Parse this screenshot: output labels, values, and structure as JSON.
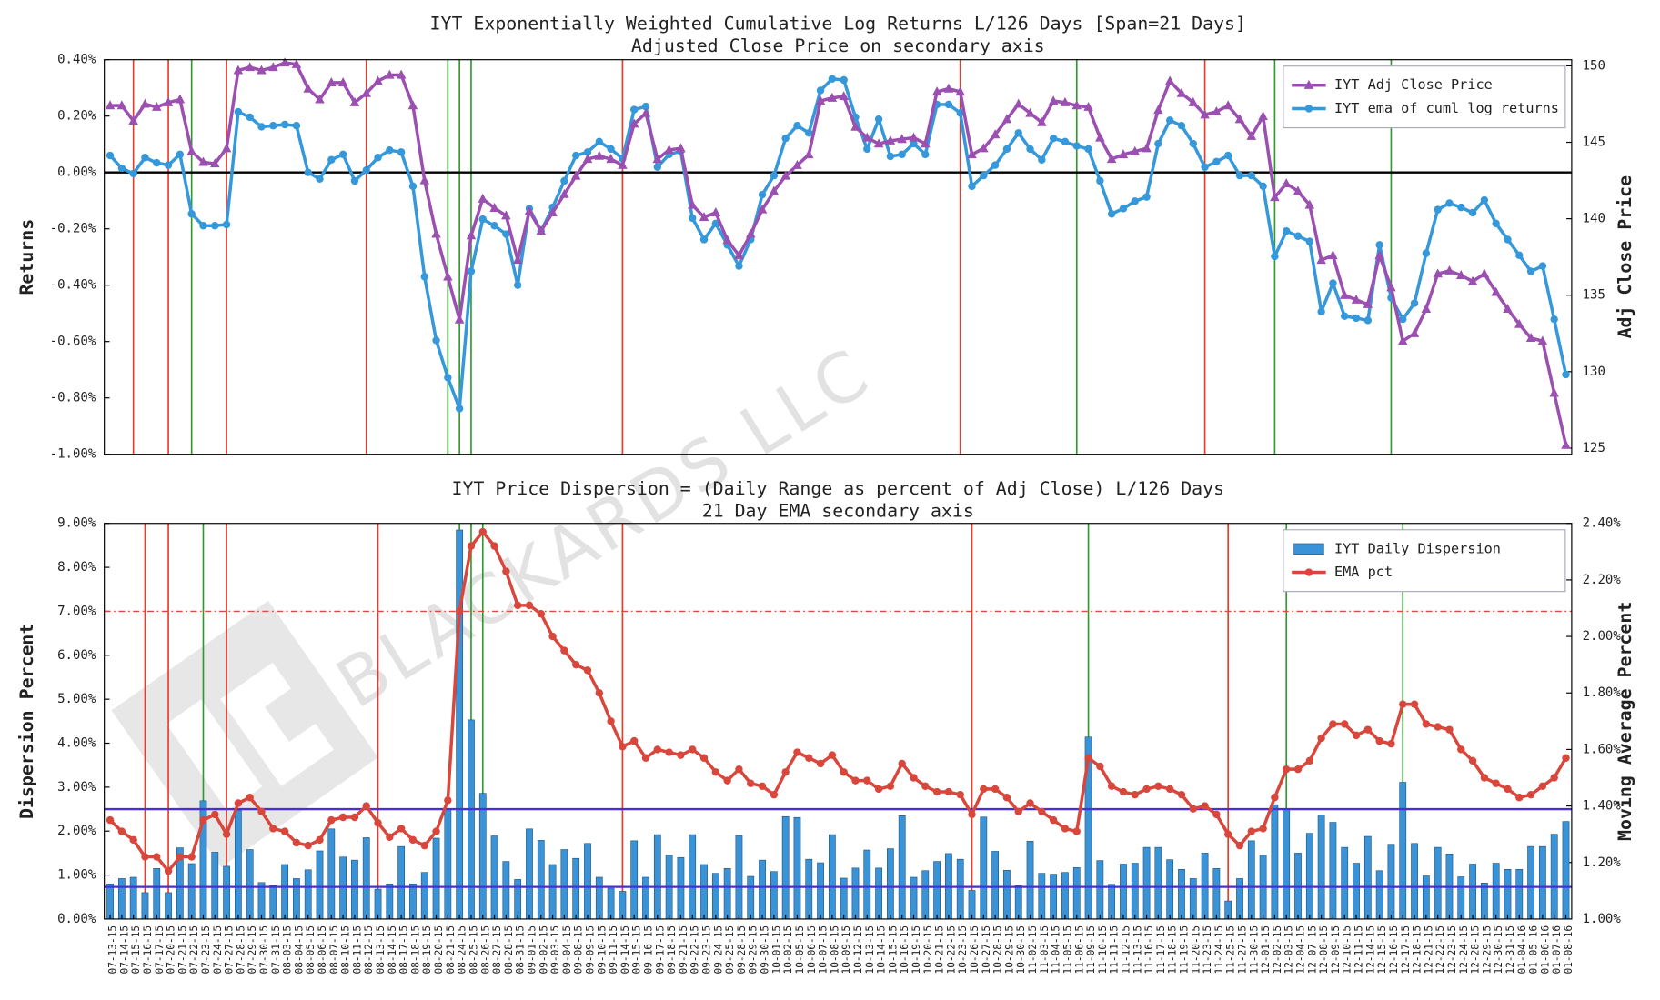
{
  "watermark": "BLACKARDS LLC",
  "chart_data": [
    {
      "type": "line",
      "title": "IYT Exponentially Weighted Cumulative Log Returns L/126 Days [Span=21 Days]",
      "subtitle": "Adjusted Close Price on secondary axis",
      "ylabel": "Returns",
      "y2label": "Adj Close Price",
      "ylim": [
        -1.0,
        0.4
      ],
      "yticks": [
        {
          "value": 0.4,
          "label": "0.40%"
        },
        {
          "value": 0.2,
          "label": "0.20%"
        },
        {
          "value": 0,
          "label": "0.00%"
        },
        {
          "value": -0.2,
          "label": "-0.20%"
        },
        {
          "value": -0.4,
          "label": "-0.40%"
        },
        {
          "value": -0.6,
          "label": "-0.60%"
        },
        {
          "value": -0.8,
          "label": "-0.80%"
        },
        {
          "value": -1.0,
          "label": "-1.00%"
        }
      ],
      "y2lim": [
        124.6,
        150.4
      ],
      "y2ticks": [
        125,
        130,
        135,
        140,
        145,
        150
      ],
      "legend": "upper right",
      "hlines": [
        {
          "value": 0,
          "color": "#000000",
          "style": "solid"
        }
      ],
      "signals": [
        {
          "color": "#e8392b",
          "dates": [
            "07-15-15",
            "07-20-15",
            "07-27-15",
            "08-12-15",
            "09-14-15",
            "10-23-15",
            "11-23-15"
          ]
        },
        {
          "color": "#2e9a2e",
          "dates": [
            "07-22-15",
            "08-21-15",
            "08-24-15",
            "08-25-15",
            "11-06-15",
            "12-02-15",
            "12-16-15"
          ]
        }
      ],
      "series": [
        {
          "name": "IYT Adj Close Price",
          "color": "#9b4fb0",
          "marker": "triangle",
          "axis": "y2",
          "type": "line",
          "values": [
            147.4,
            147.4,
            146.4,
            147.5,
            147.3,
            147.6,
            147.8,
            144.4,
            143.7,
            143.6,
            144.6,
            149.7,
            149.9,
            149.7,
            149.9,
            150.2,
            150.1,
            148.5,
            147.8,
            148.9,
            148.9,
            147.6,
            148.2,
            149.0,
            149.4,
            149.4,
            147.4,
            142.5,
            139.0,
            136.2,
            133.4,
            138.9,
            141.3,
            140.7,
            140.2,
            137.3,
            140.5,
            139.2,
            140.4,
            141.6,
            142.8,
            143.9,
            144.1,
            143.9,
            143.5,
            146.2,
            146.9,
            143.9,
            144.5,
            144.6,
            140.9,
            140.1,
            140.4,
            138.6,
            137.6,
            139.0,
            140.6,
            141.8,
            142.8,
            143.5,
            144.2,
            147.7,
            147.9,
            148.0,
            146.0,
            145.3,
            144.9,
            145.1,
            145.2,
            145.3,
            144.9,
            148.3,
            148.5,
            148.3,
            144.2,
            144.6,
            145.5,
            146.5,
            147.5,
            146.9,
            146.3,
            147.7,
            147.6,
            147.4,
            147.3,
            145.3,
            143.9,
            144.2,
            144.4,
            144.6,
            147.1,
            149.0,
            148.2,
            147.6,
            146.8,
            147.0,
            147.4,
            146.5,
            145.4,
            146.7,
            141.4,
            142.3,
            141.8,
            140.9,
            137.3,
            137.6,
            135.0,
            134.7,
            134.4,
            137.6,
            135.5,
            132.0,
            132.5,
            134.1,
            136.4,
            136.6,
            136.3,
            135.9,
            136.4,
            135.2,
            134.1,
            133.1,
            132.2,
            132.0,
            128.6,
            125.2
          ]
        },
        {
          "name": "IYT ema of cuml log returns",
          "color": "#3498db",
          "marker": "circle",
          "type": "line",
          "values": [
            0.06,
            0.015,
            -0.004,
            0.053,
            0.034,
            0.026,
            0.064,
            -0.147,
            -0.189,
            -0.189,
            -0.185,
            0.215,
            0.196,
            0.162,
            0.166,
            0.17,
            0.166,
            0,
            -0.023,
            0.045,
            0.064,
            -0.03,
            0.008,
            0.053,
            0.079,
            0.072,
            -0.049,
            -0.37,
            -0.596,
            -0.728,
            -0.838,
            -0.351,
            -0.166,
            -0.189,
            -0.219,
            -0.4,
            -0.128,
            -0.208,
            -0.124,
            -0.03,
            0.06,
            0.072,
            0.109,
            0.083,
            0.049,
            0.223,
            0.234,
            0.019,
            0.064,
            0.075,
            -0.162,
            -0.238,
            -0.181,
            -0.257,
            -0.332,
            -0.238,
            -0.079,
            -0.011,
            0.121,
            0.166,
            0.14,
            0.291,
            0.332,
            0.328,
            0.196,
            0.083,
            0.189,
            0.057,
            0.064,
            0.102,
            0.064,
            0.241,
            0.241,
            0.211,
            -0.049,
            -0.011,
            0.026,
            0.083,
            0.14,
            0.083,
            0.045,
            0.121,
            0.109,
            0.094,
            0.083,
            -0.03,
            -0.147,
            -0.128,
            -0.102,
            -0.087,
            0.102,
            0.185,
            0.166,
            0.102,
            0.019,
            0.038,
            0.06,
            -0.011,
            -0.011,
            -0.049,
            -0.298,
            -0.208,
            -0.226,
            -0.245,
            -0.494,
            -0.393,
            -0.51,
            -0.517,
            -0.525,
            -0.257,
            -0.445,
            -0.521,
            -0.464,
            -0.287,
            -0.132,
            -0.109,
            -0.124,
            -0.143,
            -0.098,
            -0.181,
            -0.238,
            -0.294,
            -0.351,
            -0.332,
            -0.521,
            -0.717
          ]
        }
      ]
    },
    {
      "type": "bar",
      "title": "IYT Price Dispersion = (Daily Range as percent of Adj Close) L/126 Days",
      "subtitle": "21 Day EMA secondary axis",
      "ylabel": "Dispersion Percent",
      "y2label": "Moving Average Percent",
      "ylim": [
        0,
        9
      ],
      "yticks": [
        {
          "value": 0,
          "label": "0.00%"
        },
        {
          "value": 1,
          "label": "1.00%"
        },
        {
          "value": 2,
          "label": "2.00%"
        },
        {
          "value": 3,
          "label": "3.00%"
        },
        {
          "value": 4,
          "label": "4.00%"
        },
        {
          "value": 5,
          "label": "5.00%"
        },
        {
          "value": 6,
          "label": "6.00%"
        },
        {
          "value": 7,
          "label": "7.00%"
        },
        {
          "value": 8,
          "label": "8.00%"
        },
        {
          "value": 9,
          "label": "9.00%"
        }
      ],
      "y2lim": [
        1.0,
        2.4
      ],
      "y2ticks": [
        {
          "value": 1.0,
          "label": "1.00%"
        },
        {
          "value": 1.2,
          "label": "1.20%"
        },
        {
          "value": 1.4,
          "label": "1.40%"
        },
        {
          "value": 1.6,
          "label": "1.60%"
        },
        {
          "value": 1.8,
          "label": "1.80%"
        },
        {
          "value": 2.0,
          "label": "2.00%"
        },
        {
          "value": 2.2,
          "label": "2.20%"
        },
        {
          "value": 2.4,
          "label": "2.40%"
        }
      ],
      "legend": "upper right",
      "hlines": [
        {
          "value": 2.5,
          "color": "#4a2fd6",
          "style": "solid"
        },
        {
          "value": 0.73,
          "color": "#4a2fd6",
          "style": "solid"
        },
        {
          "value": 7.0,
          "color": "#e04a3a",
          "style": "dashdot"
        }
      ],
      "signals": [
        {
          "color": "#e8392b",
          "dates": [
            "07-16-15",
            "07-20-15",
            "07-27-15",
            "08-13-15",
            "09-14-15",
            "10-26-15",
            "11-25-15"
          ]
        },
        {
          "color": "#2e9a2e",
          "dates": [
            "07-23-15",
            "08-24-15",
            "08-25-15",
            "08-26-15",
            "11-09-15",
            "12-03-15",
            "12-17-15"
          ]
        }
      ],
      "categories": [
        "07-13-15",
        "07-14-15",
        "07-15-15",
        "07-16-15",
        "07-17-15",
        "07-20-15",
        "07-21-15",
        "07-22-15",
        "07-23-15",
        "07-24-15",
        "07-27-15",
        "07-28-15",
        "07-29-15",
        "07-30-15",
        "07-31-15",
        "08-03-15",
        "08-04-15",
        "08-05-15",
        "08-06-15",
        "08-07-15",
        "08-10-15",
        "08-11-15",
        "08-12-15",
        "08-13-15",
        "08-14-15",
        "08-17-15",
        "08-18-15",
        "08-19-15",
        "08-20-15",
        "08-21-15",
        "08-24-15",
        "08-25-15",
        "08-26-15",
        "08-27-15",
        "08-28-15",
        "08-31-15",
        "09-01-15",
        "09-02-15",
        "09-03-15",
        "09-04-15",
        "09-08-15",
        "09-09-15",
        "09-10-15",
        "09-11-15",
        "09-14-15",
        "09-15-15",
        "09-16-15",
        "09-17-15",
        "09-18-15",
        "09-21-15",
        "09-22-15",
        "09-23-15",
        "09-24-15",
        "09-25-15",
        "09-28-15",
        "09-29-15",
        "09-30-15",
        "10-01-15",
        "10-02-15",
        "10-05-15",
        "10-06-15",
        "10-07-15",
        "10-08-15",
        "10-09-15",
        "10-12-15",
        "10-13-15",
        "10-14-15",
        "10-15-15",
        "10-16-15",
        "10-19-15",
        "10-20-15",
        "10-21-15",
        "10-22-15",
        "10-23-15",
        "10-26-15",
        "10-27-15",
        "10-28-15",
        "10-29-15",
        "10-30-15",
        "11-02-15",
        "11-03-15",
        "11-04-15",
        "11-05-15",
        "11-06-15",
        "11-09-15",
        "11-10-15",
        "11-11-15",
        "11-12-15",
        "11-13-15",
        "11-16-15",
        "11-17-15",
        "11-18-15",
        "11-19-15",
        "11-20-15",
        "11-23-15",
        "11-24-15",
        "11-25-15",
        "11-27-15",
        "11-30-15",
        "12-01-15",
        "12-02-15",
        "12-03-15",
        "12-04-15",
        "12-07-15",
        "12-08-15",
        "12-09-15",
        "12-10-15",
        "12-11-15",
        "12-14-15",
        "12-15-15",
        "12-16-15",
        "12-17-15",
        "12-18-15",
        "12-21-15",
        "12-22-15",
        "12-23-15",
        "12-24-15",
        "12-28-15",
        "12-29-15",
        "12-30-15",
        "12-31-15",
        "01-04-16",
        "01-05-16",
        "01-06-16",
        "01-07-16",
        "01-08-16"
      ],
      "series": [
        {
          "name": "IYT Daily Dispersion",
          "color": "#3a93d6",
          "type": "bar",
          "values": [
            0.8,
            0.92,
            0.95,
            0.6,
            1.15,
            0.6,
            1.62,
            1.26,
            2.69,
            1.52,
            1.2,
            2.47,
            1.58,
            0.83,
            0.76,
            1.24,
            0.92,
            1.12,
            1.55,
            2.05,
            1.41,
            1.34,
            1.85,
            0.68,
            0.8,
            1.65,
            0.8,
            1.06,
            1.84,
            2.5,
            8.85,
            4.53,
            2.86,
            1.89,
            1.31,
            0.9,
            2.05,
            1.79,
            1.24,
            1.58,
            1.38,
            1.72,
            0.95,
            0.7,
            0.63,
            1.78,
            0.95,
            1.92,
            1.45,
            1.4,
            1.92,
            1.24,
            1.04,
            1.15,
            1.9,
            0.97,
            1.34,
            1.08,
            2.33,
            2.31,
            1.36,
            1.28,
            1.92,
            0.93,
            1.16,
            1.57,
            1.16,
            1.6,
            2.35,
            0.95,
            1.1,
            1.31,
            1.49,
            1.36,
            0.65,
            2.32,
            1.54,
            1.11,
            0.76,
            1.77,
            1.04,
            1.02,
            1.06,
            1.17,
            4.14,
            1.33,
            0.79,
            1.25,
            1.27,
            1.63,
            1.63,
            1.35,
            1.13,
            0.92,
            1.5,
            1.15,
            0.41,
            0.92,
            1.78,
            1.45,
            2.6,
            2.5,
            1.5,
            1.95,
            2.37,
            2.2,
            1.63,
            1.27,
            1.88,
            1.1,
            1.7,
            3.11,
            1.72,
            0.98,
            1.63,
            1.48,
            0.96,
            1.25,
            0.82,
            1.27,
            1.13,
            1.13,
            1.65,
            1.65,
            1.93,
            2.22
          ]
        },
        {
          "name": "EMA pct",
          "color": "#d9463b",
          "marker": "circle",
          "axis": "y2",
          "type": "line",
          "values": [
            1.35,
            1.31,
            1.28,
            1.22,
            1.22,
            1.17,
            1.22,
            1.22,
            1.35,
            1.37,
            1.3,
            1.41,
            1.43,
            1.38,
            1.32,
            1.31,
            1.27,
            1.26,
            1.28,
            1.35,
            1.36,
            1.36,
            1.4,
            1.34,
            1.29,
            1.32,
            1.28,
            1.26,
            1.31,
            1.42,
            2.09,
            2.32,
            2.37,
            2.32,
            2.23,
            2.11,
            2.11,
            2.08,
            2.0,
            1.95,
            1.9,
            1.88,
            1.8,
            1.7,
            1.61,
            1.63,
            1.57,
            1.6,
            1.59,
            1.58,
            1.6,
            1.57,
            1.52,
            1.49,
            1.53,
            1.48,
            1.47,
            1.44,
            1.52,
            1.59,
            1.57,
            1.55,
            1.58,
            1.52,
            1.49,
            1.49,
            1.46,
            1.47,
            1.55,
            1.5,
            1.47,
            1.45,
            1.45,
            1.44,
            1.37,
            1.46,
            1.46,
            1.43,
            1.38,
            1.41,
            1.38,
            1.35,
            1.32,
            1.31,
            1.57,
            1.54,
            1.47,
            1.45,
            1.44,
            1.46,
            1.47,
            1.46,
            1.44,
            1.39,
            1.4,
            1.37,
            1.3,
            1.26,
            1.31,
            1.32,
            1.43,
            1.53,
            1.53,
            1.56,
            1.64,
            1.69,
            1.69,
            1.65,
            1.67,
            1.63,
            1.62,
            1.76,
            1.76,
            1.69,
            1.68,
            1.67,
            1.6,
            1.56,
            1.5,
            1.48,
            1.46,
            1.43,
            1.44,
            1.47,
            1.5,
            1.57
          ]
        }
      ]
    }
  ]
}
